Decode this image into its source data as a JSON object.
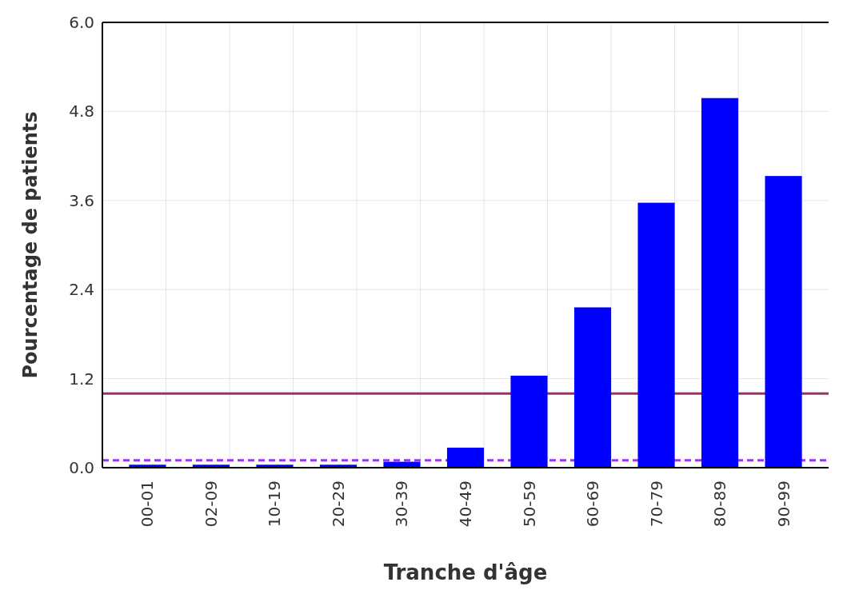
{
  "chart_data": {
    "type": "bar",
    "xlabel": "Tranche d'âge",
    "ylabel": "Pourcentage de patients",
    "categories": [
      "00-01",
      "02-09",
      "10-19",
      "20-29",
      "30-39",
      "40-49",
      "50-59",
      "60-69",
      "70-79",
      "80-89",
      "90-99"
    ],
    "values": [
      0.04,
      0.04,
      0.04,
      0.04,
      0.08,
      0.27,
      1.24,
      2.16,
      3.57,
      4.98,
      3.93
    ],
    "color": "#0000ff",
    "ylim": [
      0,
      6
    ],
    "yticks": [
      {
        "value": 0,
        "label": "0.0"
      },
      1.2,
      2.4,
      3.6,
      4.8,
      {
        "value": 6,
        "label": "6.0"
      }
    ],
    "grid": true,
    "ref_lines": [
      {
        "axis": "y",
        "value": 1.0,
        "color": "#993366",
        "line_style": "solid"
      },
      {
        "axis": "y",
        "value": 0.1,
        "color": "#9933ff",
        "line_style": "dashed"
      }
    ]
  }
}
